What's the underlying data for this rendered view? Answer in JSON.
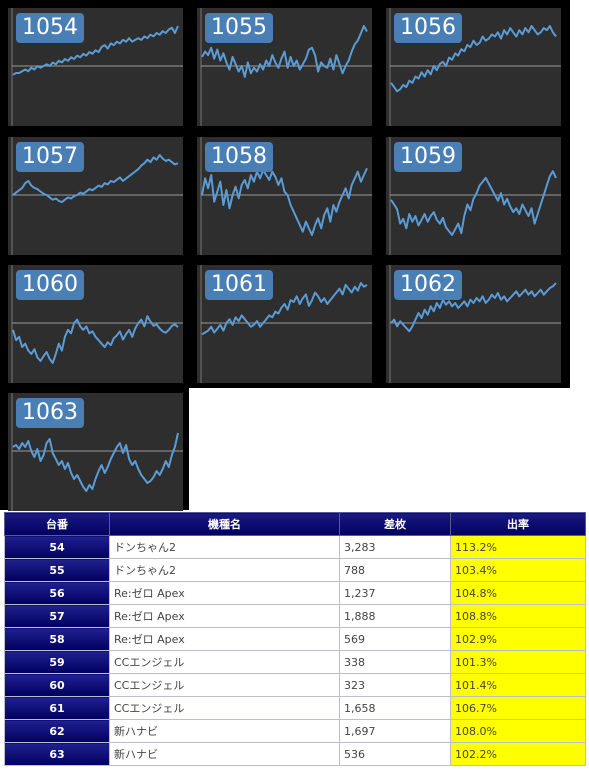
{
  "charts": [
    {
      "label": "1054",
      "series": [
        -5,
        -4,
        -4,
        -3,
        -2,
        -3,
        -1,
        -2,
        0,
        -1,
        0,
        1,
        0,
        2,
        1,
        3,
        2,
        4,
        3,
        5,
        4,
        6,
        5,
        7,
        6,
        8,
        7,
        9,
        8,
        11,
        12,
        10,
        13,
        12,
        14,
        13,
        15,
        14,
        16,
        14,
        15,
        16,
        15,
        17,
        16,
        18,
        17,
        19,
        18,
        20,
        19,
        21,
        22,
        19,
        23
      ]
    },
    {
      "label": "1055",
      "series": [
        5,
        8,
        6,
        10,
        4,
        9,
        3,
        7,
        2,
        -2,
        5,
        1,
        -3,
        0,
        -6,
        2,
        -4,
        -1,
        -3,
        1,
        -2,
        3,
        0,
        6,
        2,
        -1,
        4,
        8,
        -1,
        5,
        0,
        3,
        -2,
        1,
        4,
        9,
        10,
        6,
        -3,
        2,
        0,
        -1,
        4,
        -2,
        6,
        1,
        -4,
        0,
        3,
        8,
        12,
        14,
        18,
        22,
        19
      ]
    },
    {
      "label": "1056",
      "series": [
        -8,
        -10,
        -12,
        -11,
        -9,
        -10,
        -7,
        -8,
        -5,
        -6,
        -3,
        -5,
        -2,
        -4,
        0,
        -2,
        1,
        2,
        0,
        4,
        3,
        6,
        5,
        8,
        7,
        10,
        9,
        12,
        10,
        11,
        14,
        12,
        13,
        15,
        14,
        16,
        13,
        17,
        15,
        18,
        16,
        14,
        17,
        15,
        18,
        16,
        19,
        17,
        15,
        16,
        18,
        17,
        19,
        16,
        14
      ]
    },
    {
      "label": "1057",
      "series": [
        0,
        2,
        4,
        6,
        10,
        12,
        8,
        6,
        5,
        3,
        1,
        0,
        -2,
        -4,
        -3,
        -5,
        -6,
        -4,
        -2,
        -3,
        -1,
        0,
        2,
        1,
        3,
        5,
        4,
        6,
        8,
        7,
        10,
        9,
        12,
        11,
        13,
        15,
        12,
        14,
        16,
        18,
        20,
        22,
        25,
        27,
        30,
        28,
        32,
        30,
        34,
        31,
        29,
        30,
        28,
        26,
        27
      ]
    },
    {
      "label": "1058",
      "series": [
        0,
        10,
        4,
        12,
        -4,
        2,
        8,
        -6,
        3,
        -8,
        0,
        5,
        -2,
        6,
        9,
        4,
        12,
        8,
        14,
        10,
        15,
        12,
        9,
        14,
        11,
        6,
        10,
        2,
        0,
        -6,
        -10,
        -14,
        -18,
        -22,
        -16,
        -20,
        -24,
        -18,
        -14,
        -20,
        -12,
        -8,
        -16,
        -6,
        -10,
        -4,
        0,
        4,
        -2,
        6,
        10,
        14,
        8,
        12,
        16
      ]
    },
    {
      "label": "1059",
      "series": [
        -5,
        -10,
        -15,
        -30,
        -25,
        -35,
        -20,
        -28,
        -22,
        -32,
        -26,
        -20,
        -28,
        -22,
        -18,
        -26,
        -30,
        -24,
        -34,
        -38,
        -42,
        -36,
        -30,
        -40,
        -22,
        -10,
        -16,
        -4,
        2,
        10,
        14,
        18,
        12,
        6,
        0,
        -6,
        2,
        -10,
        -4,
        -12,
        -18,
        -14,
        -20,
        -10,
        -16,
        -22,
        -14,
        -30,
        -20,
        -10,
        0,
        10,
        20,
        25,
        18
      ]
    },
    {
      "label": "1060",
      "series": [
        -10,
        -25,
        -20,
        -35,
        -30,
        -40,
        -45,
        -38,
        -50,
        -55,
        -48,
        -42,
        -52,
        -58,
        -45,
        -30,
        -40,
        -20,
        -10,
        -15,
        0,
        5,
        -5,
        -10,
        -5,
        -15,
        -12,
        -20,
        -25,
        -30,
        -35,
        -28,
        -32,
        -22,
        -18,
        -12,
        -24,
        -16,
        -10,
        -20,
        -8,
        0,
        5,
        -5,
        10,
        2,
        -4,
        -2,
        -8,
        -12,
        -14,
        -10,
        -4,
        -2,
        -6
      ]
    },
    {
      "label": "1061",
      "series": [
        -6,
        -5,
        -4,
        -2,
        -5,
        -3,
        -1,
        -4,
        0,
        2,
        -1,
        3,
        1,
        4,
        2,
        0,
        -2,
        -1,
        1,
        -2,
        0,
        2,
        4,
        3,
        6,
        5,
        8,
        10,
        7,
        12,
        11,
        14,
        10,
        13,
        15,
        9,
        12,
        16,
        14,
        11,
        13,
        10,
        12,
        14,
        16,
        18,
        15,
        20,
        18,
        16,
        19,
        17,
        21,
        19,
        20
      ]
    },
    {
      "label": "1062",
      "series": [
        0,
        2,
        -2,
        1,
        -1,
        -3,
        -5,
        -2,
        2,
        6,
        3,
        8,
        5,
        10,
        7,
        12,
        9,
        14,
        11,
        13,
        10,
        12,
        9,
        11,
        13,
        10,
        14,
        12,
        15,
        13,
        16,
        12,
        14,
        17,
        15,
        18,
        14,
        16,
        13,
        15,
        17,
        19,
        16,
        18,
        20,
        17,
        19,
        16,
        18,
        20,
        17,
        19,
        21,
        22,
        24
      ]
    },
    {
      "label": "1063",
      "series": [
        4,
        6,
        2,
        8,
        4,
        10,
        0,
        -6,
        2,
        -10,
        -4,
        8,
        12,
        -2,
        -8,
        -14,
        -10,
        -18,
        -12,
        -22,
        -28,
        -24,
        -30,
        -36,
        -40,
        -34,
        -38,
        -28,
        -20,
        -14,
        -22,
        -16,
        -8,
        -2,
        4,
        8,
        -2,
        6,
        -8,
        -14,
        -10,
        -18,
        -24,
        -28,
        -32,
        -30,
        -26,
        -20,
        -24,
        -18,
        -10,
        -16,
        -4,
        4,
        18
      ]
    }
  ],
  "table": {
    "headers": [
      "台番",
      "機種名",
      "差枚",
      "出率"
    ],
    "rows": [
      {
        "num": "54",
        "name": "ドンちゃん2",
        "diff": "3,283",
        "rate": "113.2%"
      },
      {
        "num": "55",
        "name": "ドンちゃん2",
        "diff": "788",
        "rate": "103.4%"
      },
      {
        "num": "56",
        "name": "Re:ゼロ Apex",
        "diff": "1,237",
        "rate": "104.8%"
      },
      {
        "num": "57",
        "name": "Re:ゼロ Apex",
        "diff": "1,888",
        "rate": "108.8%"
      },
      {
        "num": "58",
        "name": "Re:ゼロ Apex",
        "diff": "569",
        "rate": "102.9%"
      },
      {
        "num": "59",
        "name": "CCエンジェル",
        "diff": "338",
        "rate": "101.3%"
      },
      {
        "num": "60",
        "name": "CCエンジェル",
        "diff": "323",
        "rate": "101.4%"
      },
      {
        "num": "61",
        "name": "CCエンジェル",
        "diff": "1,658",
        "rate": "106.7%"
      },
      {
        "num": "62",
        "name": "新ハナビ",
        "diff": "1,697",
        "rate": "108.0%"
      },
      {
        "num": "63",
        "name": "新ハナビ",
        "diff": "536",
        "rate": "102.2%"
      }
    ]
  },
  "colors": {
    "line": "#5b9bd5",
    "tile_bg": "#2e2e2e",
    "badge": "#4a7fb5",
    "rate_bg": "#ffff00"
  }
}
